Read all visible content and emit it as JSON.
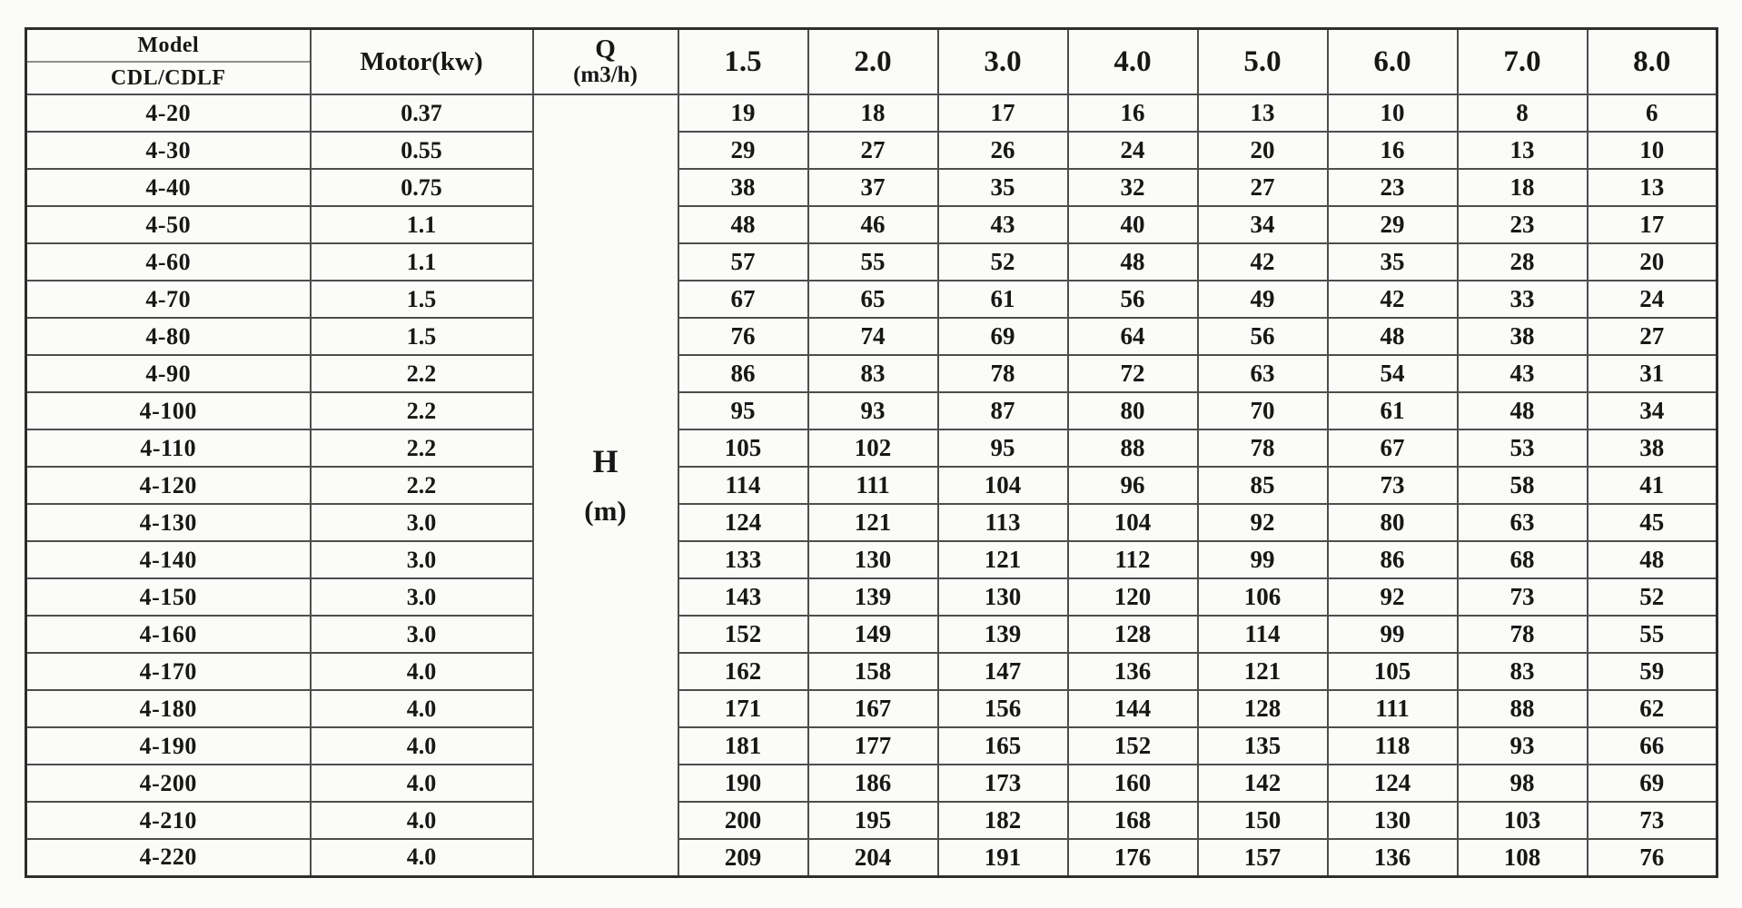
{
  "page": {
    "background": "#fbfbf9"
  },
  "colors": {
    "grid_line": "#4d4d4c",
    "outer_border": "#2e2e2d",
    "model_divider": "#8f8f8d",
    "text": "#171716"
  },
  "table": {
    "header": {
      "model_title": "Model",
      "model_subtitle": "CDL/CDLF",
      "motor_label": "Motor(kw)",
      "q_label": "Q",
      "q_unit": "(m3/h)",
      "flow_columns": [
        "1.5",
        "2.0",
        "3.0",
        "4.0",
        "5.0",
        "6.0",
        "7.0",
        "8.0"
      ]
    },
    "body_center_label": "H",
    "body_center_unit": "(m)",
    "rows": [
      {
        "model": "4-20",
        "motor": "0.37",
        "heads": [
          19,
          18,
          17,
          16,
          13,
          10,
          8,
          6
        ]
      },
      {
        "model": "4-30",
        "motor": "0.55",
        "heads": [
          29,
          27,
          26,
          24,
          20,
          16,
          13,
          10
        ]
      },
      {
        "model": "4-40",
        "motor": "0.75",
        "heads": [
          38,
          37,
          35,
          32,
          27,
          23,
          18,
          13
        ]
      },
      {
        "model": "4-50",
        "motor": "1.1",
        "heads": [
          48,
          46,
          43,
          40,
          34,
          29,
          23,
          17
        ]
      },
      {
        "model": "4-60",
        "motor": "1.1",
        "heads": [
          57,
          55,
          52,
          48,
          42,
          35,
          28,
          20
        ]
      },
      {
        "model": "4-70",
        "motor": "1.5",
        "heads": [
          67,
          65,
          61,
          56,
          49,
          42,
          33,
          24
        ]
      },
      {
        "model": "4-80",
        "motor": "1.5",
        "heads": [
          76,
          74,
          69,
          64,
          56,
          48,
          38,
          27
        ]
      },
      {
        "model": "4-90",
        "motor": "2.2",
        "heads": [
          86,
          83,
          78,
          72,
          63,
          54,
          43,
          31
        ]
      },
      {
        "model": "4-100",
        "motor": "2.2",
        "heads": [
          95,
          93,
          87,
          80,
          70,
          61,
          48,
          34
        ]
      },
      {
        "model": "4-110",
        "motor": "2.2",
        "heads": [
          105,
          102,
          95,
          88,
          78,
          67,
          53,
          38
        ]
      },
      {
        "model": "4-120",
        "motor": "2.2",
        "heads": [
          114,
          111,
          104,
          96,
          85,
          73,
          58,
          41
        ]
      },
      {
        "model": "4-130",
        "motor": "3.0",
        "heads": [
          124,
          121,
          113,
          104,
          92,
          80,
          63,
          45
        ]
      },
      {
        "model": "4-140",
        "motor": "3.0",
        "heads": [
          133,
          130,
          121,
          112,
          99,
          86,
          68,
          48
        ]
      },
      {
        "model": "4-150",
        "motor": "3.0",
        "heads": [
          143,
          139,
          130,
          120,
          106,
          92,
          73,
          52
        ]
      },
      {
        "model": "4-160",
        "motor": "3.0",
        "heads": [
          152,
          149,
          139,
          128,
          114,
          99,
          78,
          55
        ]
      },
      {
        "model": "4-170",
        "motor": "4.0",
        "heads": [
          162,
          158,
          147,
          136,
          121,
          105,
          83,
          59
        ]
      },
      {
        "model": "4-180",
        "motor": "4.0",
        "heads": [
          171,
          167,
          156,
          144,
          128,
          111,
          88,
          62
        ]
      },
      {
        "model": "4-190",
        "motor": "4.0",
        "heads": [
          181,
          177,
          165,
          152,
          135,
          118,
          93,
          66
        ]
      },
      {
        "model": "4-200",
        "motor": "4.0",
        "heads": [
          190,
          186,
          173,
          160,
          142,
          124,
          98,
          69
        ]
      },
      {
        "model": "4-210",
        "motor": "4.0",
        "heads": [
          200,
          195,
          182,
          168,
          150,
          130,
          103,
          73
        ]
      },
      {
        "model": "4-220",
        "motor": "4.0",
        "heads": [
          209,
          204,
          191,
          176,
          157,
          136,
          108,
          76
        ]
      }
    ]
  }
}
